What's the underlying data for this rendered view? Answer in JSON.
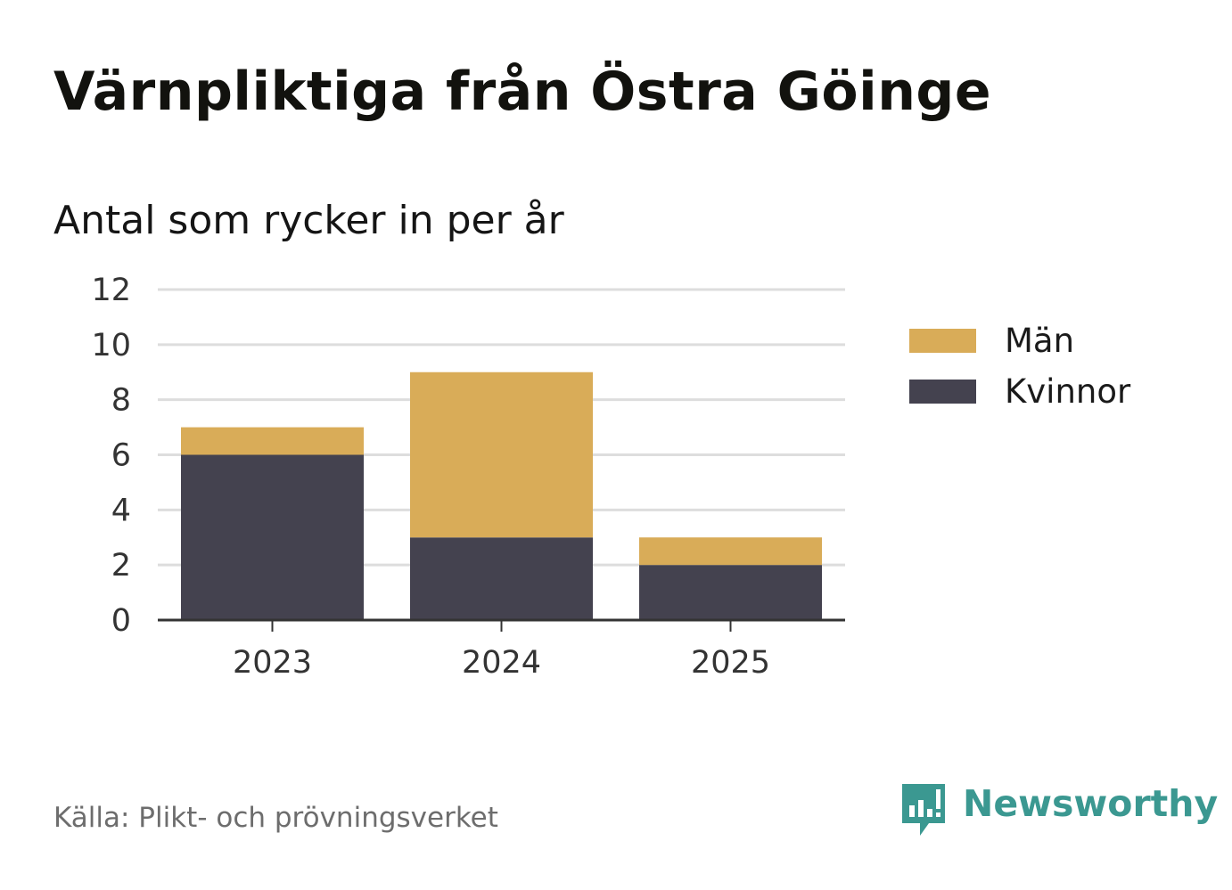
{
  "title": "Värnpliktiga från Östra Göinge",
  "subtitle": "Antal som rycker in per år",
  "source": "Källa: Plikt- och prövningsverket",
  "brand": {
    "name": "Newsworthy",
    "icon": "newsworthy-logo-icon",
    "color": "#3b9891"
  },
  "chart_data": {
    "type": "bar",
    "stacked": true,
    "title": "Antal som rycker in per år",
    "categories": [
      "2023",
      "2024",
      "2025"
    ],
    "series": [
      {
        "name": "Kvinnor",
        "values": [
          6,
          3,
          2
        ],
        "color": "#44424f"
      },
      {
        "name": "Män",
        "values": [
          1,
          6,
          1
        ],
        "color": "#d9ac58"
      }
    ],
    "legend_order": [
      "Män",
      "Kvinnor"
    ],
    "legend_position": "right",
    "ylim": [
      0,
      12
    ],
    "yticks": [
      0,
      2,
      4,
      6,
      8,
      10,
      12
    ],
    "grid": true,
    "xlabel": "",
    "ylabel": "",
    "gridline_color": "#dddddd",
    "axis_color": "#333333"
  }
}
